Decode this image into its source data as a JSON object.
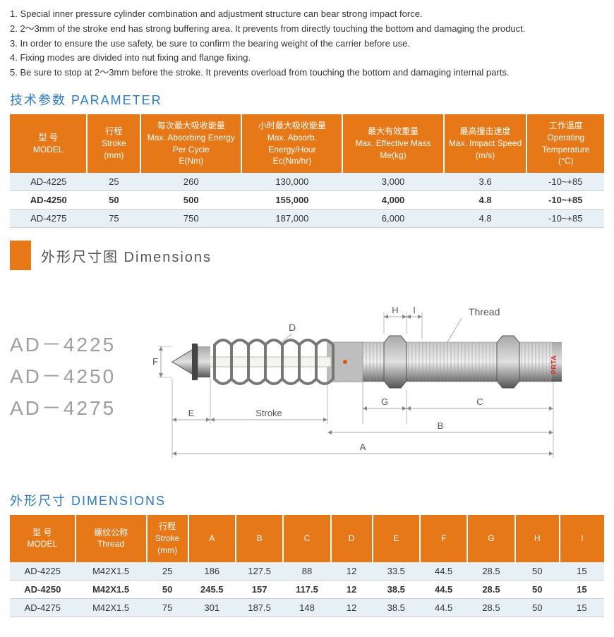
{
  "notes": [
    "1.  Special inner pressure cylinder combination and adjustment structure can bear strong impact force.",
    "2.  2～3mm of the stroke end has strong buffering area.  It prevents from directly touching the bottom and damaging the product.",
    "3.  In order to ensure the use safety, be sure to confirm the bearing weight of the carrier before use.",
    "4.  Fixing modes are divided into nut fixing and flange fixing.",
    "5.  Be sure to stop at 2～3mm before the stroke.  It prevents overload from touching the bottom and damaging internal parts."
  ],
  "parameter_title": "技术参数 PARAMETER",
  "parameter_headers": [
    {
      "cn": "型 号",
      "en": "MODEL"
    },
    {
      "cn": "行程",
      "en": "Stroke",
      "unit": "(mm)"
    },
    {
      "cn": "每次最大吸收能量",
      "en": "Max. Absorbing Energy Per Cycle",
      "unit": "E(Nm)"
    },
    {
      "cn": "小时最大吸收能量",
      "en": "Max. Absorb. Energy/Hour",
      "unit": "Ec(Nm/hr)"
    },
    {
      "cn": "最大有效重量",
      "en": "Max. Effective Mass",
      "unit": "Me(kg)"
    },
    {
      "cn": "最高撞击速度",
      "en": "Max. Impact Speed",
      "unit": "(m/s)"
    },
    {
      "cn": "工作温度",
      "en": "Operating Temperature",
      "unit": "(°C)"
    }
  ],
  "parameter_rows": [
    [
      "AD-4225",
      "25",
      "260",
      "130,000",
      "3,000",
      "3.6",
      "-10~+85"
    ],
    [
      "AD-4250",
      "50",
      "500",
      "155,000",
      "4,000",
      "4.8",
      "-10~+85"
    ],
    [
      "AD-4275",
      "75",
      "750",
      "187,000",
      "6,000",
      "4.8",
      "-10~+85"
    ]
  ],
  "parameter_col_widths": [
    "13%",
    "9%",
    "17%",
    "17%",
    "17%",
    "14%",
    "13%"
  ],
  "dim_header": "外形尺寸图  Dimensions",
  "model_list": [
    "AD－4225",
    "AD－4250",
    "AD－4275"
  ],
  "diagram_labels": {
    "H": "H",
    "I": "I",
    "Thread": "Thread",
    "D": "D",
    "F": "F",
    "E": "E",
    "Stroke": "Stroke",
    "G": "G",
    "C": "C",
    "B": "B",
    "A": "A",
    "brand": "PRTA"
  },
  "diagram_colors": {
    "metal_light": "#c8c8c8",
    "metal_mid": "#a8a8a8",
    "metal_dark": "#6b6b6b",
    "spring": "#777",
    "tip": "#555",
    "knurl": "#bfbfbf",
    "dot": "#e05a00",
    "dim_line": "#888",
    "dim_text": "#555",
    "brand": "#d43a2a"
  },
  "dimensions_title": "外形尺寸 DIMENSIONS",
  "dimensions_headers": [
    {
      "cn": "型 号",
      "en": "MODEL"
    },
    {
      "cn": "螺纹公称",
      "en": "Thread"
    },
    {
      "cn": "行程",
      "en": "Stroke",
      "unit": "(mm)"
    },
    {
      "cn": "",
      "en": "A"
    },
    {
      "cn": "",
      "en": "B"
    },
    {
      "cn": "",
      "en": "C"
    },
    {
      "cn": "",
      "en": "D"
    },
    {
      "cn": "",
      "en": "E"
    },
    {
      "cn": "",
      "en": "F"
    },
    {
      "cn": "",
      "en": "G"
    },
    {
      "cn": "",
      "en": "H"
    },
    {
      "cn": "",
      "en": "I"
    }
  ],
  "dimensions_rows": [
    [
      "AD-4225",
      "M42X1.5",
      "25",
      "186",
      "127.5",
      "88",
      "12",
      "33.5",
      "44.5",
      "28.5",
      "50",
      "15"
    ],
    [
      "AD-4250",
      "M42X1.5",
      "50",
      "245.5",
      "157",
      "117.5",
      "12",
      "38.5",
      "44.5",
      "28.5",
      "50",
      "15"
    ],
    [
      "AD-4275",
      "M42X1.5",
      "75",
      "301",
      "187.5",
      "148",
      "12",
      "38.5",
      "44.5",
      "28.5",
      "50",
      "15"
    ]
  ],
  "dimensions_col_widths": [
    "11%",
    "12%",
    "7%",
    "8%",
    "8%",
    "8%",
    "7%",
    "8%",
    "8%",
    "8%",
    "7.5%",
    "7.5%"
  ],
  "bold_row_index": 1,
  "theme": {
    "header_bg": "#e67817",
    "header_fg": "#ffffff",
    "row_odd_bg": "#e6f0f5",
    "row_even_bg": "#ffffff",
    "title_color": "#2a7ac7",
    "border": "#d0d0d0"
  }
}
